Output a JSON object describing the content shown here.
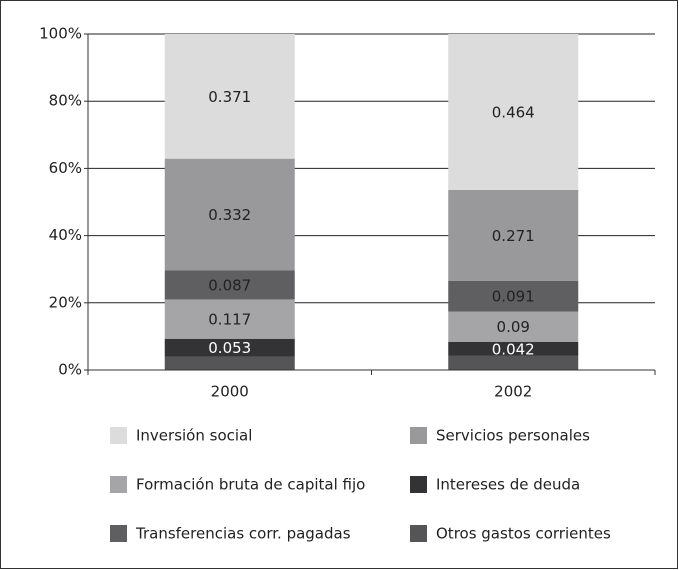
{
  "chart_data": {
    "type": "stacked_bar",
    "categories": [
      "2000",
      "2002"
    ],
    "ylim": [
      0,
      100
    ],
    "yticks": [
      {
        "value": 0,
        "label": "0%"
      },
      {
        "value": 20,
        "label": "20%"
      },
      {
        "value": 40,
        "label": "40%"
      },
      {
        "value": 60,
        "label": "60%"
      },
      {
        "value": 80,
        "label": "80%"
      },
      {
        "value": 100,
        "label": "100%"
      }
    ],
    "grid": true,
    "legend": "bottom",
    "series": [
      {
        "name": "Otros gastos corrientes",
        "color": "#555557",
        "values": [
          4.0,
          4.2
        ],
        "value_labels": [
          null,
          null
        ]
      },
      {
        "name": "Intereses de deuda",
        "color": "#333335",
        "values": [
          5.3,
          4.2
        ],
        "value_labels": [
          "0.053",
          "0.042"
        ]
      },
      {
        "name": "Formación bruta de capital fijo",
        "color": "#a5a5a7",
        "values": [
          11.7,
          9.0
        ],
        "value_labels": [
          "0.117",
          "0.09"
        ]
      },
      {
        "name": "Transferencias corr. pagadas",
        "color": "#5f5f61",
        "values": [
          8.7,
          9.1
        ],
        "value_labels": [
          "0.087",
          "0.091"
        ]
      },
      {
        "name": "Servicios personales",
        "color": "#99999b",
        "values": [
          33.2,
          27.1
        ],
        "value_labels": [
          "0.332",
          "0.271"
        ]
      },
      {
        "name": "Inversión social",
        "color": "#dcdcdc",
        "values": [
          37.1,
          46.4
        ],
        "value_labels": [
          "0.371",
          "0.464"
        ]
      }
    ]
  }
}
